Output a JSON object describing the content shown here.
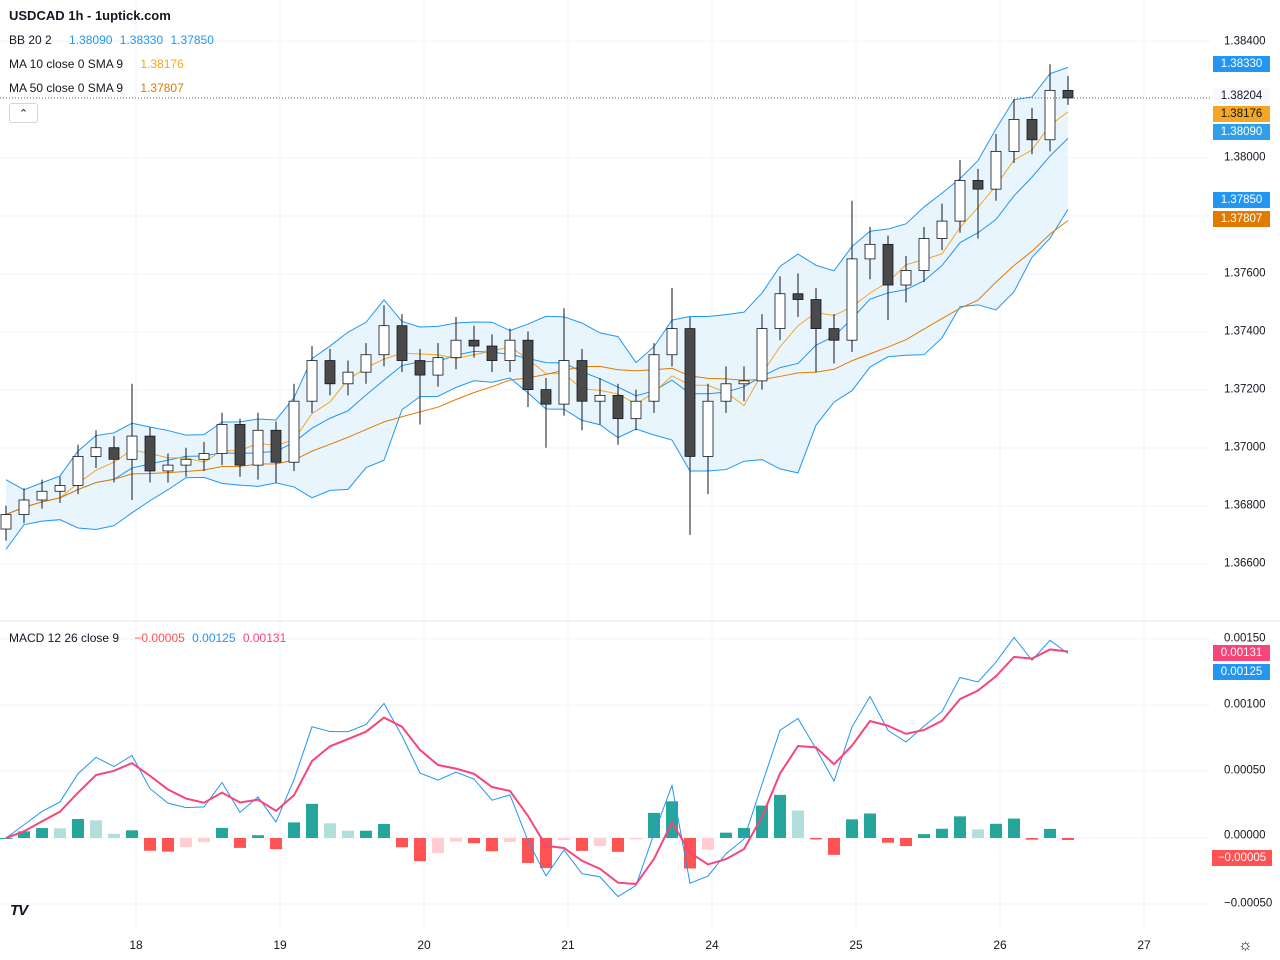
{
  "header": {
    "title": "USDCAD 1h - 1uptick.com"
  },
  "legend": {
    "bb": {
      "label": "BB 20 2",
      "basis": "1.38090",
      "upper": "1.38330",
      "lower": "1.37850"
    },
    "ma10": {
      "label": "MA 10 close 0 SMA 9",
      "value": "1.38176"
    },
    "ma50": {
      "label": "MA 50 close 0 SMA 9",
      "value": "1.37807"
    },
    "macd": {
      "label": "MACD 12 26 close 9",
      "hist": "−0.00005",
      "macd": "0.00125",
      "signal": "0.00131"
    },
    "collapse_icon": "chevron-up-icon"
  },
  "colors": {
    "bb": "#2196f3",
    "bb_fill": "#e3f2fd",
    "ma10": "#f5a623",
    "ma50": "#e07b00",
    "candle_up": "#ffffff",
    "candle_down": "#4a4a4a",
    "candle_border": "#131722",
    "macd_line": "#2196f3",
    "signal_line": "#f7457a",
    "hist_up_strong": "#26a69a",
    "hist_up_weak": "#b2dfdb",
    "hist_down_strong": "#ff5252",
    "hist_down_weak": "#ffcdd2",
    "last_price_badge": "#f8f9fd"
  },
  "price_axis": {
    "ticks": [
      "1.38400",
      "1.38000",
      "1.37600",
      "1.37400",
      "1.37200",
      "1.37000",
      "1.36800",
      "1.36600"
    ],
    "badges": {
      "bb_upper": "1.38330",
      "last": "1.38204",
      "ma10": "1.38176",
      "bb_basis": "1.38090",
      "bb_lower": "1.37850",
      "ma50": "1.37807"
    }
  },
  "macd_axis": {
    "ticks": [
      "0.00150",
      "0.00100",
      "0.00050",
      "0.00000",
      "−0.00050"
    ],
    "badges": {
      "signal": "0.00131",
      "macd": "0.00125",
      "hist": "−0.00005"
    }
  },
  "time_axis": {
    "labels": [
      "18",
      "19",
      "20",
      "21",
      "24",
      "25",
      "26",
      "27"
    ]
  },
  "footer": {
    "logo": "TV",
    "settings_icon": "gear-icon"
  },
  "chart_data": {
    "type": "candlestick",
    "symbol": "USDCAD",
    "interval": "1h",
    "ylim": [
      1.365,
      1.385
    ],
    "macd_ylim": [
      -0.0007,
      0.0016
    ],
    "grid": true,
    "indicators": [
      "BB 20 2",
      "MA 10",
      "MA 50",
      "MACD 12 26 9"
    ],
    "candles": [
      [
        1.3672,
        1.368,
        1.3668,
        1.3677
      ],
      [
        1.3677,
        1.3686,
        1.3674,
        1.3682
      ],
      [
        1.3682,
        1.3689,
        1.3679,
        1.3685
      ],
      [
        1.3685,
        1.369,
        1.3681,
        1.3687
      ],
      [
        1.3687,
        1.3701,
        1.3684,
        1.3697
      ],
      [
        1.3697,
        1.3706,
        1.3693,
        1.37
      ],
      [
        1.37,
        1.3704,
        1.3688,
        1.3696
      ],
      [
        1.3696,
        1.3722,
        1.3682,
        1.3704
      ],
      [
        1.3704,
        1.3707,
        1.3688,
        1.3692
      ],
      [
        1.3692,
        1.3698,
        1.3688,
        1.3694
      ],
      [
        1.3694,
        1.37,
        1.369,
        1.3696
      ],
      [
        1.3696,
        1.3702,
        1.3692,
        1.3698
      ],
      [
        1.3698,
        1.3712,
        1.3694,
        1.3708
      ],
      [
        1.3708,
        1.371,
        1.369,
        1.3694
      ],
      [
        1.3694,
        1.3712,
        1.3689,
        1.3706
      ],
      [
        1.3706,
        1.3709,
        1.3688,
        1.3695
      ],
      [
        1.3695,
        1.3722,
        1.3692,
        1.3716
      ],
      [
        1.3716,
        1.3735,
        1.3712,
        1.373
      ],
      [
        1.373,
        1.3734,
        1.3718,
        1.3722
      ],
      [
        1.3722,
        1.373,
        1.3718,
        1.3726
      ],
      [
        1.3726,
        1.3736,
        1.3722,
        1.3732
      ],
      [
        1.3732,
        1.3749,
        1.3728,
        1.3742
      ],
      [
        1.3742,
        1.3746,
        1.3726,
        1.373
      ],
      [
        1.373,
        1.3734,
        1.3708,
        1.3725
      ],
      [
        1.3725,
        1.3736,
        1.3721,
        1.3731
      ],
      [
        1.3731,
        1.3745,
        1.3727,
        1.3737
      ],
      [
        1.3737,
        1.3742,
        1.3731,
        1.3735
      ],
      [
        1.3735,
        1.3739,
        1.3726,
        1.373
      ],
      [
        1.373,
        1.3741,
        1.3726,
        1.3737
      ],
      [
        1.3737,
        1.374,
        1.3714,
        1.372
      ],
      [
        1.372,
        1.3724,
        1.37,
        1.3715
      ],
      [
        1.3715,
        1.3748,
        1.3711,
        1.373
      ],
      [
        1.373,
        1.3734,
        1.3706,
        1.3716
      ],
      [
        1.3716,
        1.3724,
        1.3708,
        1.3718
      ],
      [
        1.3718,
        1.3722,
        1.3701,
        1.371
      ],
      [
        1.371,
        1.372,
        1.3706,
        1.3716
      ],
      [
        1.3716,
        1.3736,
        1.3712,
        1.3732
      ],
      [
        1.3732,
        1.3755,
        1.3728,
        1.3741
      ],
      [
        1.3741,
        1.3745,
        1.367,
        1.3697
      ],
      [
        1.3697,
        1.3722,
        1.3684,
        1.3716
      ],
      [
        1.3716,
        1.3728,
        1.3712,
        1.3722
      ],
      [
        1.3722,
        1.3728,
        1.3716,
        1.3723
      ],
      [
        1.3723,
        1.3746,
        1.372,
        1.3741
      ],
      [
        1.3741,
        1.3759,
        1.3737,
        1.3753
      ],
      [
        1.3753,
        1.376,
        1.3745,
        1.3751
      ],
      [
        1.3751,
        1.3755,
        1.3726,
        1.3741
      ],
      [
        1.3741,
        1.3746,
        1.3729,
        1.3737
      ],
      [
        1.3737,
        1.3785,
        1.3733,
        1.3765
      ],
      [
        1.3765,
        1.3776,
        1.3758,
        1.377
      ],
      [
        1.377,
        1.3773,
        1.3744,
        1.3756
      ],
      [
        1.3756,
        1.3766,
        1.375,
        1.3761
      ],
      [
        1.3761,
        1.3776,
        1.3757,
        1.3772
      ],
      [
        1.3772,
        1.3784,
        1.3768,
        1.3778
      ],
      [
        1.3778,
        1.3799,
        1.3774,
        1.3792
      ],
      [
        1.3792,
        1.3796,
        1.3772,
        1.3789
      ],
      [
        1.3789,
        1.3808,
        1.3785,
        1.3802
      ],
      [
        1.3802,
        1.382,
        1.3798,
        1.3813
      ],
      [
        1.3813,
        1.3817,
        1.3801,
        1.3806
      ],
      [
        1.3806,
        1.3832,
        1.3802,
        1.3823
      ],
      [
        1.3823,
        1.3828,
        1.3818,
        1.38204
      ]
    ]
  }
}
